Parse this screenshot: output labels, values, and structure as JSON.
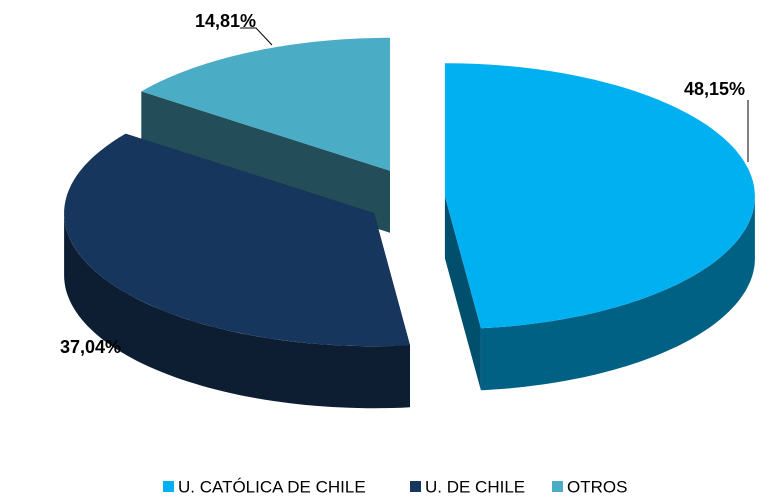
{
  "chart_data": {
    "type": "pie",
    "categories": [
      "U. CATÓLICA DE CHILE",
      "U. DE CHILE",
      "OTROS"
    ],
    "values": [
      48.15,
      37.04,
      14.81
    ],
    "value_labels": [
      "48,15%",
      "37,04%",
      "14,81%"
    ],
    "colors": [
      "#00b0f0",
      "#17365d",
      "#4bacc6"
    ],
    "legend": "bottom"
  }
}
